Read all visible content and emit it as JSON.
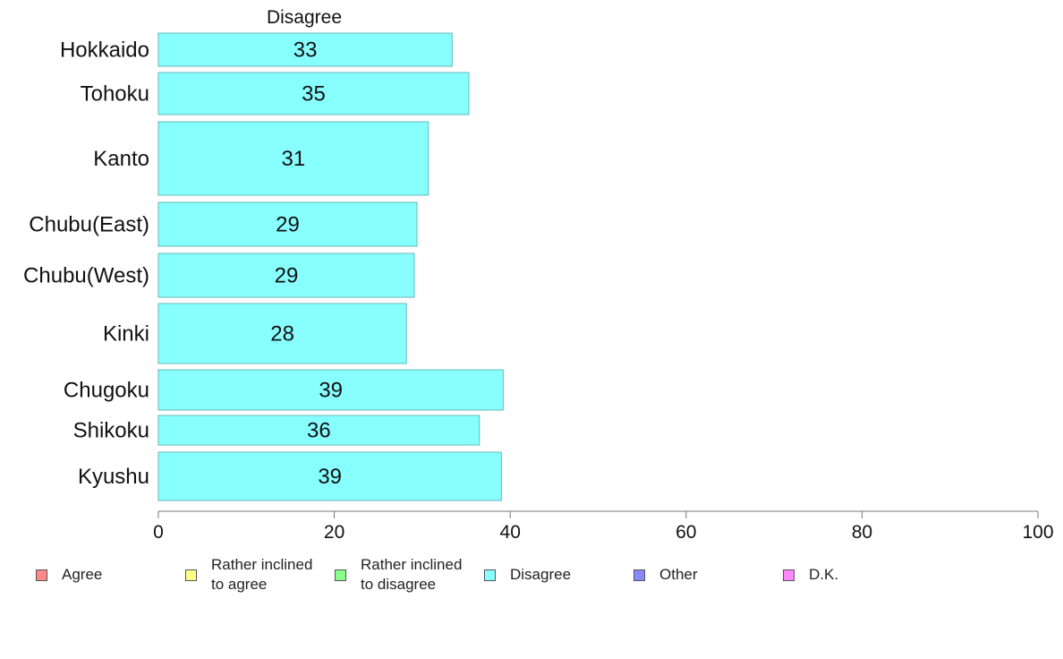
{
  "chart_data": {
    "type": "bar",
    "orientation": "horizontal",
    "title": "Disagree",
    "categories": [
      "Hokkaido",
      "Tohoku",
      "Kanto",
      "Chubu(East)",
      "Chubu(West)",
      "Kinki",
      "Chugoku",
      "Shikoku",
      "Kyushu"
    ],
    "series": [
      {
        "name": "Disagree",
        "values": [
          33.4,
          35.3,
          30.7,
          29.4,
          29.1,
          28.2,
          39.2,
          36.5,
          39.0
        ]
      }
    ],
    "data_labels": [
      "33",
      "35",
      "31",
      "29",
      "29",
      "28",
      "39",
      "36",
      "39"
    ],
    "xlim": [
      0,
      100
    ],
    "xticks": [
      "0",
      "20",
      "40",
      "60",
      "80",
      "100"
    ],
    "grid": false,
    "bar_color": "#88ffff",
    "bar_edge_color": "#66b8b8"
  },
  "legend": [
    {
      "label": "Agree",
      "color": "#ff8888"
    },
    {
      "label": "Rather inclined\nto agree",
      "color": "#ffff88"
    },
    {
      "label": "Rather inclined\nto disagree",
      "color": "#88ff88"
    },
    {
      "label": "Disagree",
      "color": "#88ffff"
    },
    {
      "label": "Other",
      "color": "#8888ff"
    },
    {
      "label": "D.K.",
      "color": "#ff88ff"
    }
  ]
}
